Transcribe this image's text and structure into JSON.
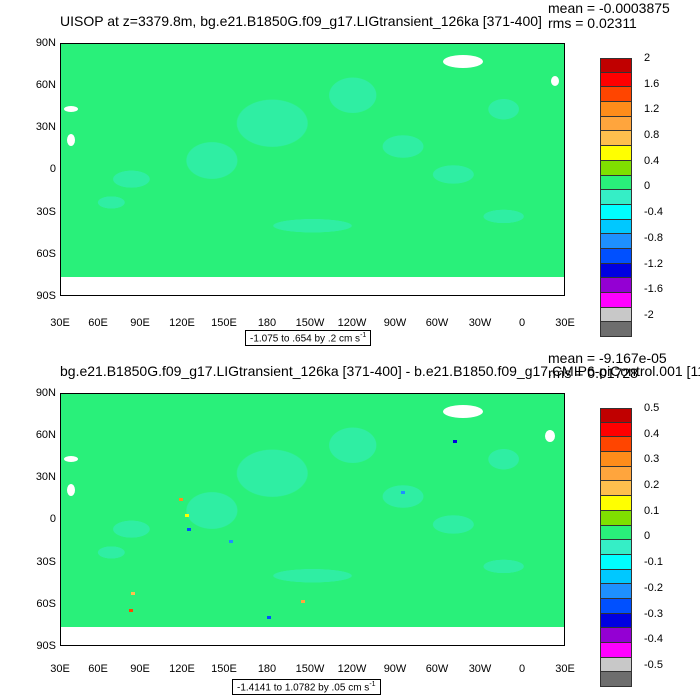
{
  "panels": [
    {
      "title": "UISOP at z=3379.8m, bg.e21.B1850G.f09_g17.LIGtransient_126ka [371-400]",
      "mean": "mean = -0.0003875",
      "rms": "rms = 0.02311",
      "range_label": "-1.075 to .654 by .2 cm s",
      "range_unit_exp": "-1",
      "colorbar_labels": [
        "2",
        "1.6",
        "1.2",
        "0.8",
        "0.4",
        "0",
        "-0.4",
        "-0.8",
        "-1.2",
        "-1.6",
        "-2"
      ]
    },
    {
      "title": "bg.e21.B1850G.f09_g17.LIGtransient_126ka [371-400] - b.e21.B1850.f09_g17.CMIP6-piControl.001 [11",
      "mean": "mean = -9.167e-05",
      "rms": "rms = 0.01728",
      "range_label": "-1.4141 to 1.0782 by .05 cm s",
      "range_unit_exp": "-1",
      "colorbar_labels": [
        "0.5",
        "0.4",
        "0.3",
        "0.2",
        "0.1",
        "0",
        "-0.1",
        "-0.2",
        "-0.3",
        "-0.4",
        "-0.5"
      ]
    }
  ],
  "lat_ticks": [
    "90N",
    "60N",
    "30N",
    "0",
    "30S",
    "60S",
    "90S"
  ],
  "lon_ticks": [
    "30E",
    "60E",
    "90E",
    "120E",
    "150E",
    "180",
    "150W",
    "120W",
    "90W",
    "60W",
    "30W",
    "0",
    "30E"
  ],
  "colorbar_colors": [
    "#c00000",
    "#ff0000",
    "#ff4500",
    "#ff8c1a",
    "#ffa53d",
    "#ffbf4d",
    "#ffff00",
    "#7fe000",
    "#29f07a",
    "#35eec6",
    "#00ffff",
    "#00c8ff",
    "#1e90ff",
    "#0050ff",
    "#0000e0",
    "#9400d3",
    "#ff00ff",
    "#c8c8c8",
    "#6e6e6e"
  ],
  "ocean_color": "#29f07a"
}
